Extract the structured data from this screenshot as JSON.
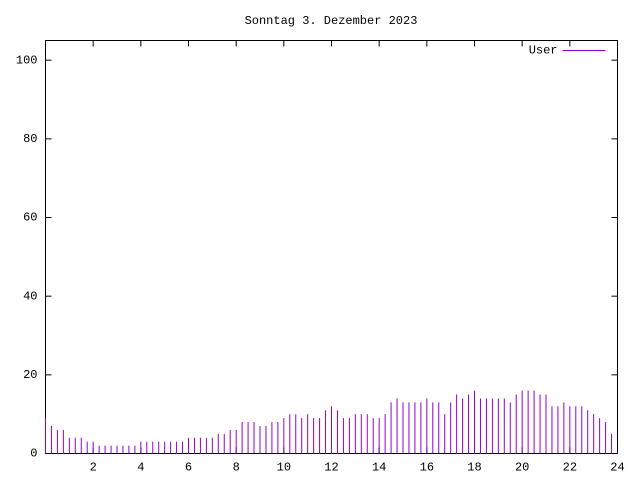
{
  "chart_data": {
    "type": "impulse",
    "title": "Sonntag 3. Dezember 2023",
    "x": [
      0,
      0.25,
      0.5,
      0.75,
      1,
      1.25,
      1.5,
      1.75,
      2,
      2.25,
      2.5,
      2.75,
      3,
      3.25,
      3.5,
      3.75,
      4,
      4.25,
      4.5,
      4.75,
      5,
      5.25,
      5.5,
      5.75,
      6,
      6.25,
      6.5,
      6.75,
      7,
      7.25,
      7.5,
      7.75,
      8,
      8.25,
      8.5,
      8.75,
      9,
      9.25,
      9.5,
      9.75,
      10,
      10.25,
      10.5,
      10.75,
      11,
      11.25,
      11.5,
      11.75,
      12,
      12.25,
      12.5,
      12.75,
      13,
      13.25,
      13.5,
      13.75,
      14,
      14.25,
      14.5,
      14.75,
      15,
      15.25,
      15.5,
      15.75,
      16,
      16.25,
      16.5,
      16.75,
      17,
      17.25,
      17.5,
      17.75,
      18,
      18.25,
      18.5,
      18.75,
      19,
      19.25,
      19.5,
      19.75,
      20,
      20.25,
      20.5,
      20.75,
      21,
      21.25,
      21.5,
      21.75,
      22,
      22.25,
      22.5,
      22.75,
      23,
      23.25,
      23.5,
      23.75
    ],
    "series": [
      {
        "name": "User",
        "color": "#9400d3",
        "values": [
          9,
          7,
          6,
          6,
          4,
          4,
          4,
          3,
          3,
          2,
          2,
          2,
          2,
          2,
          2,
          2,
          3,
          3,
          3,
          3,
          3,
          3,
          3,
          3,
          4,
          4,
          4,
          4,
          4,
          5,
          5,
          6,
          6,
          8,
          8,
          8,
          7,
          7,
          8,
          8,
          9,
          10,
          10,
          9,
          10,
          9,
          9,
          11,
          12,
          11,
          9,
          9,
          10,
          10,
          10,
          9,
          9,
          10,
          13,
          14,
          13,
          13,
          13,
          13,
          14,
          13,
          13,
          10,
          13,
          15,
          14,
          15,
          16,
          14,
          14,
          14,
          14,
          14,
          13,
          15,
          16,
          16,
          16,
          15,
          15,
          12,
          12,
          13,
          12,
          12,
          12,
          11,
          10,
          9,
          8,
          5
        ]
      }
    ],
    "xlim": [
      0,
      24
    ],
    "xticks": [
      2,
      4,
      6,
      8,
      10,
      12,
      14,
      16,
      18,
      20,
      22,
      24
    ],
    "ylim": [
      0,
      105
    ],
    "yticks": [
      0,
      20,
      40,
      60,
      80,
      100
    ],
    "legend": "top-right"
  }
}
